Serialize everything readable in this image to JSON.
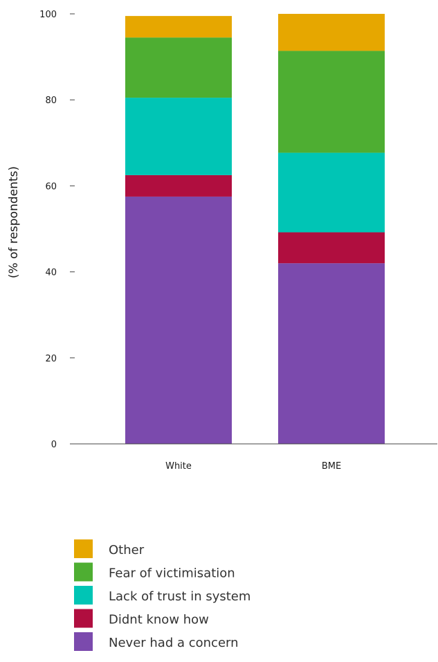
{
  "chart_data": {
    "type": "bar",
    "stacked": true,
    "categories": [
      "White",
      "BME"
    ],
    "ylabel": "(% of respondents)",
    "xlabel": "",
    "ylim": [
      0,
      100
    ],
    "yticks": [
      0,
      20,
      40,
      60,
      80,
      100
    ],
    "grid": false,
    "legend_position": "bottom-left",
    "series": [
      {
        "name": "Never had a concern",
        "color": "#7b4aad",
        "values": [
          57.5,
          42
        ]
      },
      {
        "name": "Didnt know how",
        "color": "#b00e3f",
        "values": [
          5,
          7.2
        ]
      },
      {
        "name": "Lack of trust in system",
        "color": "#00c5b5",
        "values": [
          18,
          18.5
        ]
      },
      {
        "name": "Fear of victimisation",
        "color": "#4eae32",
        "values": [
          14,
          23.7
        ]
      },
      {
        "name": "Other",
        "color": "#e6a700",
        "values": [
          5,
          8.6
        ]
      }
    ]
  }
}
